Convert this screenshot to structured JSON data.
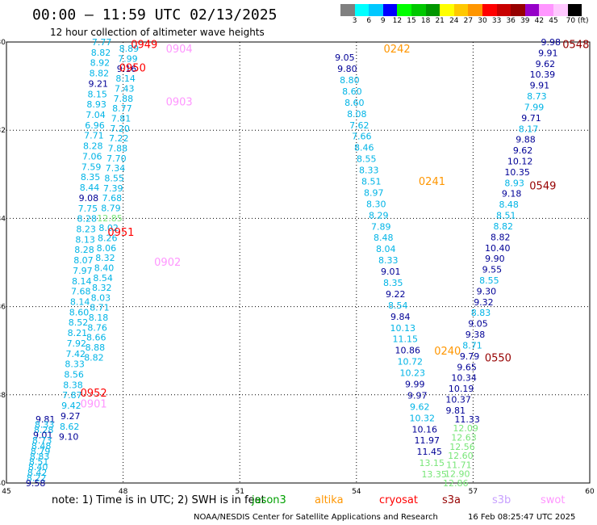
{
  "header": {
    "title": "00:00 – 11:59 UTC 02/13/2025",
    "subtitle": "12 hour collection of altimeter wave heights"
  },
  "colorbar": {
    "labels": [
      "3",
      "6",
      "9",
      "12",
      "15",
      "18",
      "21",
      "24",
      "27",
      "30",
      "33",
      "36",
      "39",
      "42",
      "45",
      "70 (ft)"
    ],
    "colors": [
      "#808080",
      "#00ffff",
      "#00c8ff",
      "#0000ff",
      "#00ff00",
      "#00c800",
      "#009600",
      "#ffff00",
      "#ffc800",
      "#ff9600",
      "#ff0000",
      "#c80000",
      "#960000",
      "#9600c8",
      "#ff96ff",
      "#ffc8ff",
      "#000000"
    ]
  },
  "footer": {
    "note": "note:  1) Time is in UTC;  2) SWH is in feet",
    "legend": [
      {
        "name": "jason3",
        "color": "#00a000"
      },
      {
        "name": "altika",
        "color": "#ff9600"
      },
      {
        "name": "cryosat",
        "color": "#ff0000"
      },
      {
        "name": "s3a",
        "color": "#960000"
      },
      {
        "name": "s3b",
        "color": "#c8a0ff"
      },
      {
        "name": "swot",
        "color": "#ff96ff"
      }
    ],
    "credit": "NOAA/NESDIS Center for Satellite Applications and Research",
    "stamp": "16 Feb 08:25:47 UTC 2025"
  },
  "chart_data": {
    "type": "scatter",
    "xlim": [
      45,
      60
    ],
    "ylim": [
      -40,
      -30
    ],
    "xticks": [
      "45",
      "48",
      "51",
      "54",
      "57",
      "60"
    ],
    "yticks": [
      "-30",
      "-32",
      "-34",
      "-36",
      "-38",
      "-40"
    ],
    "grid": true,
    "value_colors": {
      "cyan": "#00b4e6",
      "navy": "#000096",
      "lightgreen": "#78e678"
    },
    "time_labels": [
      {
        "text": "0949",
        "x": 48.2,
        "y": -30.05,
        "color": "#ff0000"
      },
      {
        "text": "0904",
        "x": 49.1,
        "y": -30.15,
        "color": "#ff96ff"
      },
      {
        "text": "0950",
        "x": 47.9,
        "y": -30.58,
        "color": "#ff0000"
      },
      {
        "text": "0903",
        "x": 49.1,
        "y": -31.35,
        "color": "#ff96ff"
      },
      {
        "text": "0951",
        "x": 47.6,
        "y": -34.3,
        "color": "#ff0000"
      },
      {
        "text": "0902",
        "x": 48.8,
        "y": -34.98,
        "color": "#ff96ff"
      },
      {
        "text": "0952",
        "x": 46.9,
        "y": -37.95,
        "color": "#ff0000"
      },
      {
        "text": "0901",
        "x": 46.9,
        "y": -38.2,
        "color": "#ff96ff"
      },
      {
        "text": "0242",
        "x": 54.7,
        "y": -30.15,
        "color": "#ff9600"
      },
      {
        "text": "0241",
        "x": 55.6,
        "y": -33.15,
        "color": "#ff9600"
      },
      {
        "text": "0240",
        "x": 56.0,
        "y": -37.0,
        "color": "#ff9600"
      },
      {
        "text": "0548",
        "x": 59.3,
        "y": -30.05,
        "color": "#960000"
      },
      {
        "text": "0549",
        "x": 58.45,
        "y": -33.25,
        "color": "#960000"
      },
      {
        "text": "0550",
        "x": 57.3,
        "y": -37.15,
        "color": "#960000"
      }
    ],
    "series": [
      {
        "x_start": 47.45,
        "y_start": -30.0,
        "x_end": 46.6,
        "y_end": -38.95,
        "color": "cyan",
        "values": [
          "7.77",
          "8.82",
          "8.92",
          "8.82",
          "9.21",
          "8.15",
          "8.93",
          "7.04",
          "6.96",
          "7.71",
          "8.28",
          "7.06",
          "7.59",
          "8.35",
          "8.44",
          "9.08",
          "7.75",
          "8.28",
          "8.23",
          "8.13",
          "8.28",
          "8.07",
          "7.97",
          "8.14",
          "7.68",
          "8.14",
          "8.60",
          "8.52",
          "8.21",
          "7.92",
          "7.42",
          "8.33",
          "8.56",
          "8.38",
          "7.87",
          "9.42",
          "9.27",
          "8.62",
          "9.10"
        ],
        "navy": [
          4,
          15,
          36,
          38
        ]
      },
      {
        "x_start": 48.15,
        "y_start": -30.15,
        "x_end": 47.25,
        "y_end": -37.15,
        "color": "cyan",
        "values": [
          "8.89",
          "7.99",
          "9.16",
          "8.14",
          "7.43",
          "7.88",
          "8.77",
          "7.81",
          "7.20",
          "7.22",
          "7.88",
          "7.70",
          "7.34",
          "8.55",
          "7.39",
          "7.68",
          "8.79",
          "12.85",
          "8.02",
          "8.26",
          "8.06",
          "8.32",
          "8.40",
          "8.54",
          "8.32",
          "8.03",
          "8.71",
          "8.18",
          "8.76",
          "8.66",
          "8.88",
          "8.82"
        ],
        "navy": [
          2
        ],
        "lightgreen": [
          17
        ]
      },
      {
        "x_start": 46.0,
        "y_start": -38.55,
        "x_end": 45.75,
        "y_end": -40.0,
        "color": "cyan",
        "values": [
          "9.81",
          "8.33",
          "8.28",
          "9.01",
          "8.73",
          "8.48",
          "8.79",
          "8.83",
          "8.51",
          "8.40",
          "8.42",
          "8.22",
          "9.58"
        ],
        "navy": [
          0,
          3,
          12
        ]
      },
      {
        "x_start": 53.7,
        "y_start": -30.35,
        "x_end": 56.0,
        "y_end": -39.8,
        "color": "cyan",
        "values": [
          "9.05",
          "9.80",
          "8.80",
          "8.60",
          "8.60",
          "8.08",
          "7.62",
          "7.66",
          "8.46",
          "8.55",
          "8.33",
          "8.51",
          "8.97",
          "8.30",
          "8.29",
          "7.89",
          "8.48",
          "8.04",
          "8.33",
          "9.01",
          "8.35",
          "9.22",
          "8.54",
          "9.84",
          "10.13",
          "11.15",
          "10.86",
          "10.72",
          "10.23",
          "9.99",
          "9.97",
          "9.62",
          "10.32",
          "10.16",
          "11.97",
          "11.45",
          "13.15",
          "13.35"
        ],
        "navy": [
          0,
          1,
          19,
          21,
          23,
          26,
          29,
          30,
          33,
          34,
          35
        ],
        "lightgreen": [
          36,
          37
        ]
      },
      {
        "x_start": 56.85,
        "y_start": -38.55,
        "x_end": 56.55,
        "y_end": -40.0,
        "color": "lightgreen",
        "values": [
          "11.33",
          "12.09",
          "12.63",
          "12.56",
          "12.60",
          "11.71",
          "12.90",
          "12.86"
        ],
        "navy": [
          0
        ]
      },
      {
        "x_start": 59.0,
        "y_start": -30.0,
        "x_end": 56.55,
        "y_end": -38.35,
        "color": "navy",
        "values": [
          "9.98",
          "9.91",
          "9.62",
          "10.39",
          "9.91",
          "8.73",
          "7.99",
          "9.71",
          "8.17",
          "9.88",
          "9.62",
          "10.12",
          "10.35",
          "8.93",
          "9.18",
          "8.48",
          "8.51",
          "8.82",
          "8.82",
          "10.40",
          "9.90",
          "9.55",
          "8.55",
          "9.30",
          "9.32",
          "8.83",
          "9.05",
          "9.38",
          "8.71",
          "9.79",
          "9.65",
          "10.34",
          "10.19",
          "10.37",
          "9.81"
        ],
        "cyan": [
          5,
          6,
          8,
          13,
          15,
          16,
          17,
          22,
          25,
          28
        ]
      }
    ]
  }
}
